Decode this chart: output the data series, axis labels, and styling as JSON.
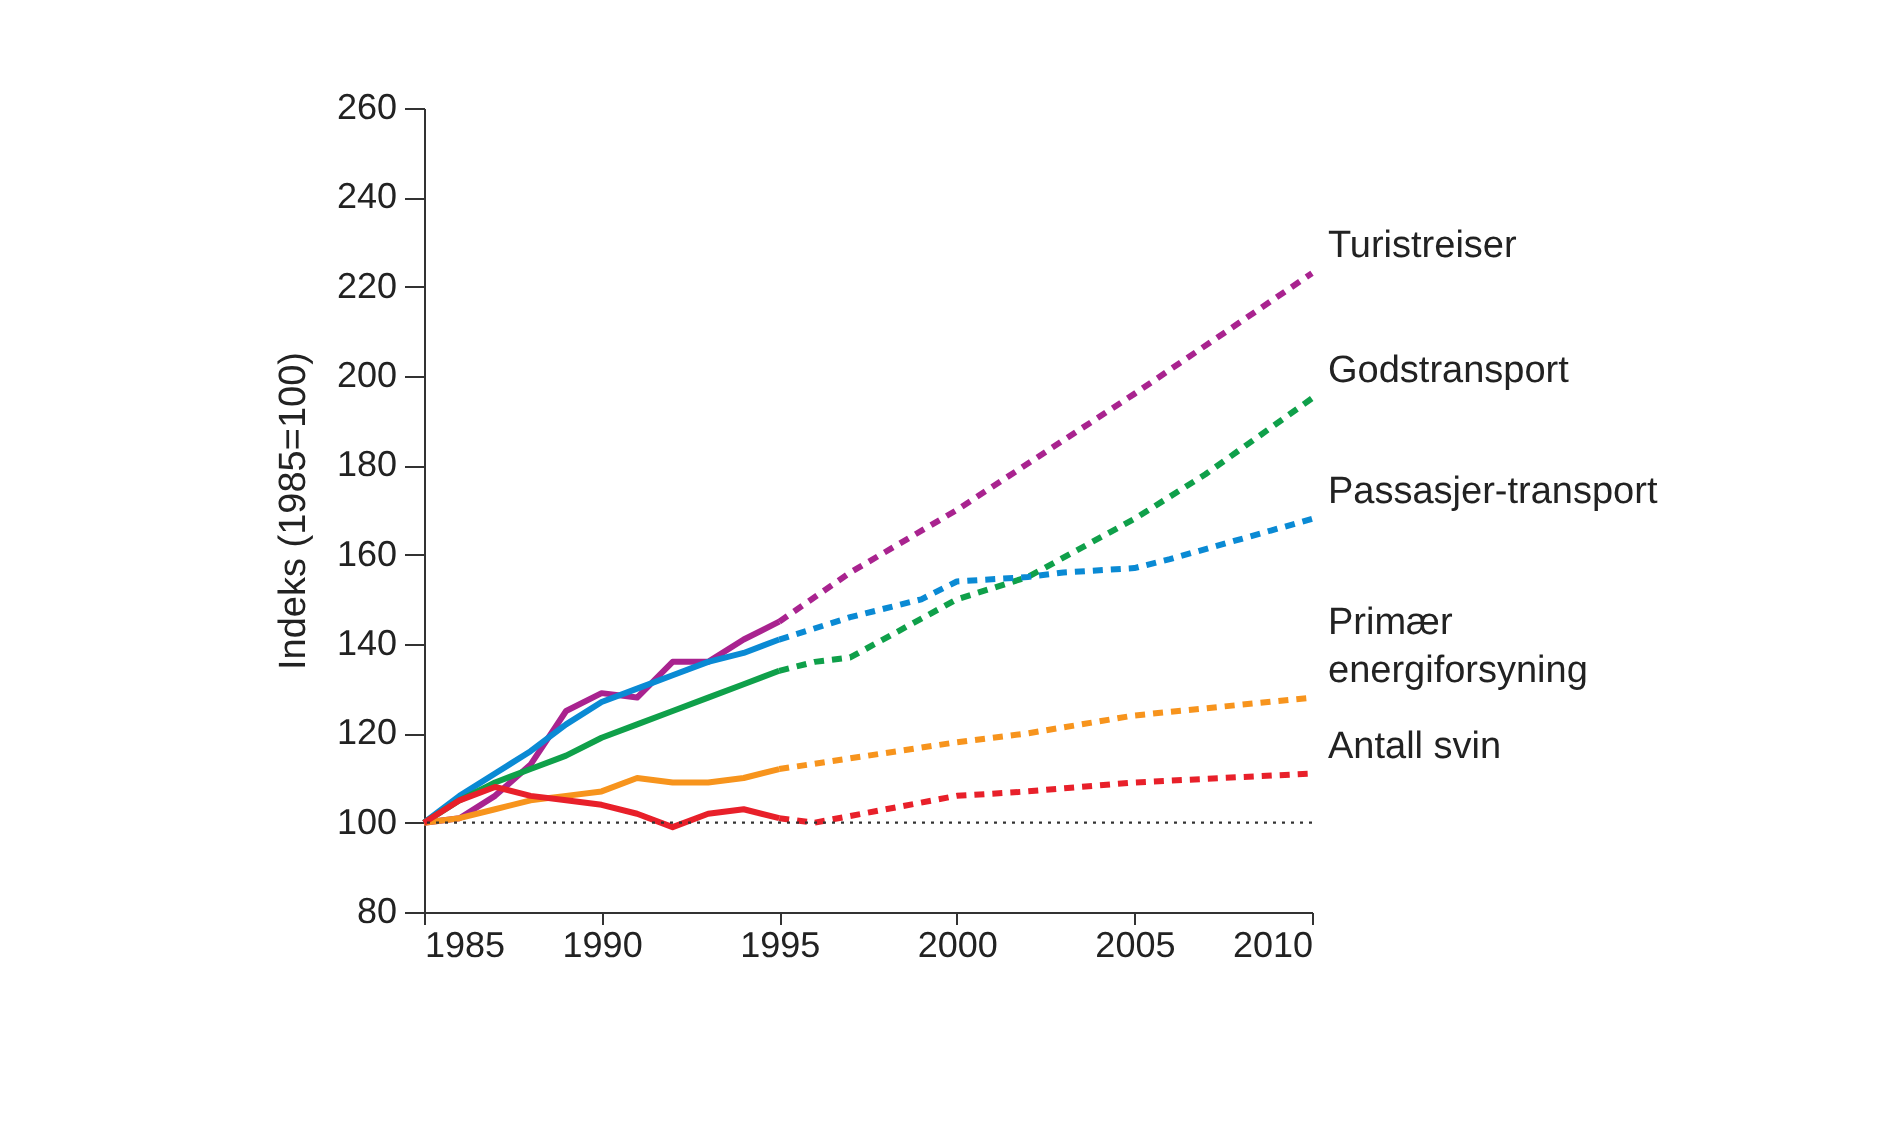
{
  "chart_data": {
    "type": "line",
    "ylabel": "Indeks (1985=100)",
    "xlim": [
      1985,
      2010
    ],
    "xticks": [
      1985,
      1990,
      1995,
      2000,
      2005,
      2010
    ],
    "ylim": [
      80,
      260
    ],
    "yticks": [
      80,
      100,
      120,
      140,
      160,
      180,
      200,
      220,
      240,
      260
    ],
    "grid": false,
    "marker": "none",
    "ref_lines": [
      {
        "axis": "y",
        "value": 100,
        "color": "#333333",
        "line_style": "dotted"
      }
    ],
    "series": [
      {
        "color": "#a9238f",
        "line_style": "solid",
        "x": [
          1985,
          1986,
          1987,
          1988,
          1989,
          1990,
          1991,
          1992,
          1993,
          1994,
          1995
        ],
        "values": [
          100,
          101,
          106,
          113,
          125,
          129,
          128,
          136,
          136,
          141,
          145
        ]
      },
      {
        "color": "#0a8ad4",
        "line_style": "solid",
        "x": [
          1985,
          1986,
          1987,
          1988,
          1989,
          1990,
          1991,
          1992,
          1993,
          1994,
          1995
        ],
        "values": [
          100,
          106,
          111,
          116,
          122,
          127,
          130,
          133,
          136,
          138,
          141
        ]
      },
      {
        "color": "#0fa04a",
        "line_style": "solid",
        "x": [
          1985,
          1986,
          1987,
          1988,
          1989,
          1990,
          1991,
          1992,
          1993,
          1994,
          1995
        ],
        "values": [
          100,
          105,
          109,
          112,
          115,
          119,
          122,
          125,
          128,
          131,
          134
        ]
      },
      {
        "color": "#f7941d",
        "line_style": "solid",
        "x": [
          1985,
          1986,
          1987,
          1988,
          1989,
          1990,
          1991,
          1992,
          1993,
          1994,
          1995
        ],
        "values": [
          100,
          101,
          103,
          105,
          106,
          107,
          110,
          109,
          109,
          110,
          112
        ]
      },
      {
        "color": "#e8202a",
        "line_style": "solid",
        "x": [
          1985,
          1986,
          1987,
          1988,
          1989,
          1990,
          1991,
          1992,
          1993,
          1994,
          1995
        ],
        "values": [
          100,
          105,
          108,
          106,
          105,
          104,
          102,
          99,
          102,
          103,
          101
        ]
      },
      {
        "name": "Turistreiser",
        "color": "#a9238f",
        "line_style": "dashed",
        "x": [
          1995,
          1997,
          2000,
          2005,
          2010
        ],
        "values": [
          145,
          156,
          170,
          196,
          223
        ]
      },
      {
        "name": "Godstransport",
        "color": "#0fa04a",
        "line_style": "dashed",
        "x": [
          1995,
          1996,
          1997,
          2000,
          2002,
          2005,
          2007,
          2010
        ],
        "values": [
          134,
          136,
          137,
          150,
          155,
          168,
          178,
          195
        ]
      },
      {
        "name": "Passasjer-transport",
        "color": "#0a8ad4",
        "line_style": "dashed",
        "x": [
          1995,
          1997,
          1999,
          2000,
          2002,
          2003,
          2005,
          2006,
          2010
        ],
        "values": [
          141,
          146,
          150,
          154,
          155,
          156,
          157,
          159,
          168
        ]
      },
      {
        "name": "Primær energiforsyning",
        "color": "#f7941d",
        "line_style": "dashed",
        "x": [
          1995,
          2000,
          2002,
          2005,
          2010
        ],
        "values": [
          112,
          118,
          120,
          124,
          128
        ]
      },
      {
        "name": "Antall svin",
        "color": "#e8202a",
        "line_style": "dashed",
        "x": [
          1995,
          1996,
          1998,
          2000,
          2002,
          2005,
          2010
        ],
        "values": [
          101,
          100,
          103,
          106,
          107,
          109,
          111
        ]
      }
    ]
  }
}
